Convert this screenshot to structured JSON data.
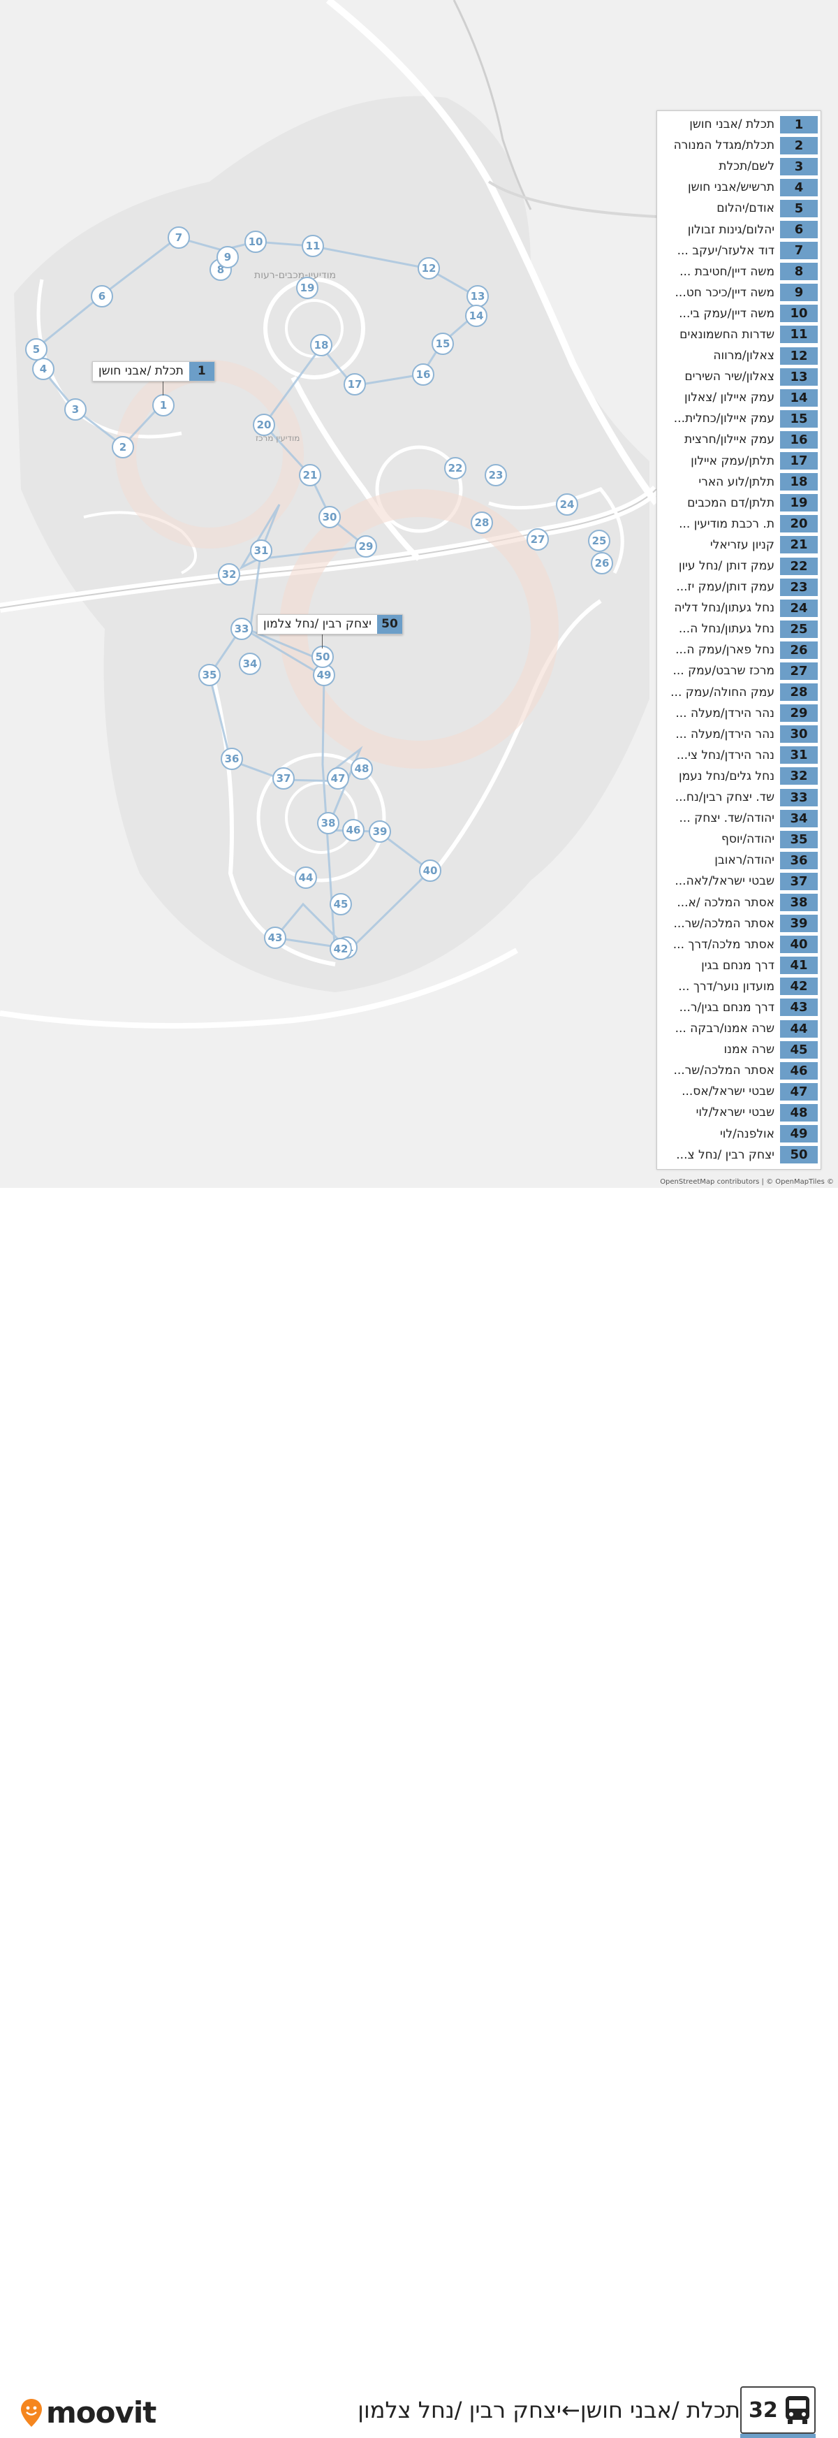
{
  "route": {
    "number": "32",
    "title": "תכלת /אבני חושן←יצחק רבין /נחל צלמון",
    "color": "#6c9ec8"
  },
  "brand": {
    "name": "moovit",
    "color": "#f5861f"
  },
  "attribution": "OpenStreetMap contributors | © OpenMapTiles ©",
  "map_labels": [
    "מודיעין-מכבים-רעות",
    "מודיעין מרכז"
  ],
  "callouts": [
    {
      "num": "1",
      "name": "תכלת /אבני חושן"
    },
    {
      "num": "50",
      "name": "יצחק רבין /נחל צלמון"
    }
  ],
  "stops": [
    {
      "num": "1",
      "name": "תכלת /אבני חושן"
    },
    {
      "num": "2",
      "name": "תכלת/מגדל המנורה"
    },
    {
      "num": "3",
      "name": "לשם/תכלת"
    },
    {
      "num": "4",
      "name": "תרשיש/אבני חושן"
    },
    {
      "num": "5",
      "name": "אודם/יהלום"
    },
    {
      "num": "6",
      "name": "יהלום/גינות זבולון"
    },
    {
      "num": "7",
      "name": "דוד אלעזר/יעקב ..."
    },
    {
      "num": "8",
      "name": "משה דיין/חטיבת ..."
    },
    {
      "num": "9",
      "name": "משה דיין/כיכר חט..."
    },
    {
      "num": "10",
      "name": "משה דיין/עמק בי..."
    },
    {
      "num": "11",
      "name": "שדרות החשמונאים"
    },
    {
      "num": "12",
      "name": "צאלון/מרווה"
    },
    {
      "num": "13",
      "name": "צאלון/שיר השירים"
    },
    {
      "num": "14",
      "name": "עמק איילון /צאלון"
    },
    {
      "num": "15",
      "name": "עמק איילון/כחלית..."
    },
    {
      "num": "16",
      "name": "עמק איילון/חרצית"
    },
    {
      "num": "17",
      "name": "תלתן/עמק איילון"
    },
    {
      "num": "18",
      "name": "תלתן/לוע הארי"
    },
    {
      "num": "19",
      "name": "תלתן/דם המכבים"
    },
    {
      "num": "20",
      "name": "ת. רכבת מודיעין ..."
    },
    {
      "num": "21",
      "name": "קניון עזריאלי"
    },
    {
      "num": "22",
      "name": "עמק דותן /נחל עיון"
    },
    {
      "num": "23",
      "name": "עמק דותן/עמק יז..."
    },
    {
      "num": "24",
      "name": "נחל געתון/נחל דליה"
    },
    {
      "num": "25",
      "name": "נחל געתון/נחל ה..."
    },
    {
      "num": "26",
      "name": "נחל פארן/עמק ה..."
    },
    {
      "num": "27",
      "name": "מרכז שרבט/עמק ..."
    },
    {
      "num": "28",
      "name": "עמק החולה/עמק ..."
    },
    {
      "num": "29",
      "name": "נהר הירדן/מעלה ..."
    },
    {
      "num": "30",
      "name": "נהר הירדן/מעלה ..."
    },
    {
      "num": "31",
      "name": "נהר הירדן/נחל צי..."
    },
    {
      "num": "32",
      "name": "נחל גלים/נחל נעמן"
    },
    {
      "num": "33",
      "name": "שד. יצחק רבין/נח..."
    },
    {
      "num": "34",
      "name": "יהודה/שד. יצחק ..."
    },
    {
      "num": "35",
      "name": "יהודה/יוסף"
    },
    {
      "num": "36",
      "name": "יהודה/ראובן"
    },
    {
      "num": "37",
      "name": "שבטי ישראל/לאה..."
    },
    {
      "num": "38",
      "name": "אסתר המלכה /א..."
    },
    {
      "num": "39",
      "name": "אסתר המלכה/שר..."
    },
    {
      "num": "40",
      "name": "אסתר מלכה/דרך ..."
    },
    {
      "num": "41",
      "name": "דרך מנחם בגין"
    },
    {
      "num": "42",
      "name": "מועדון נוער/דרך ..."
    },
    {
      "num": "43",
      "name": "דרך מנחם בגין/ר..."
    },
    {
      "num": "44",
      "name": "שרה אמנו/רבקה ..."
    },
    {
      "num": "45",
      "name": "שרה אמנו"
    },
    {
      "num": "46",
      "name": "אסתר המלכה/שר..."
    },
    {
      "num": "47",
      "name": "שבטי ישראל/אס..."
    },
    {
      "num": "48",
      "name": "שבטי ישראל/לוי"
    },
    {
      "num": "49",
      "name": "אולפנה/לוי"
    },
    {
      "num": "50",
      "name": "יצחק רבין /נחל צ..."
    }
  ]
}
